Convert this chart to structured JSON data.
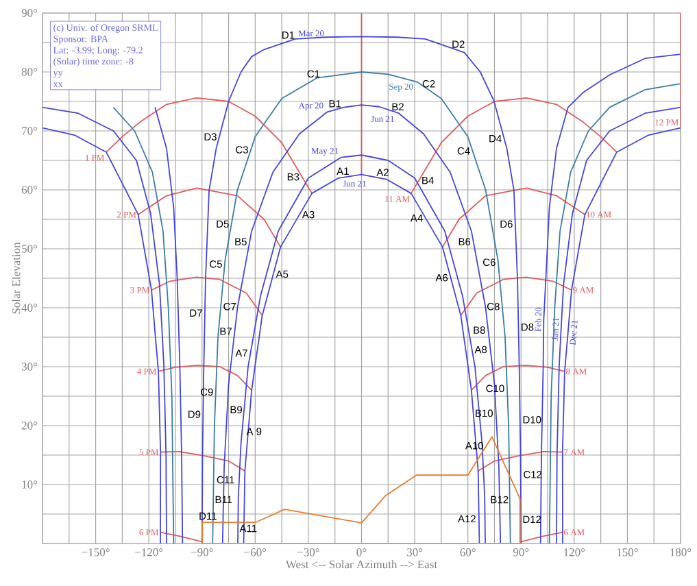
{
  "chart_data": {
    "type": "line",
    "xlabel": "West <-- Solar Azimuth --> East",
    "ylabel": "Solar Elevation",
    "xlim": [
      -180,
      180
    ],
    "ylim": [
      0,
      90
    ],
    "xticks": [
      {
        "value": -180,
        "label": null
      },
      {
        "value": -165,
        "label": null
      },
      {
        "value": -150,
        "label": "−150°"
      },
      {
        "value": -135,
        "label": null
      },
      {
        "value": -120,
        "label": "−120°"
      },
      {
        "value": -105,
        "label": null
      },
      {
        "value": -90,
        "label": "−90°"
      },
      {
        "value": -75,
        "label": null
      },
      {
        "value": -60,
        "label": "−60°"
      },
      {
        "value": -45,
        "label": null
      },
      {
        "value": -30,
        "label": "−30°"
      },
      {
        "value": -15,
        "label": null
      },
      {
        "value": 0,
        "label": "0°"
      },
      {
        "value": 15,
        "label": null
      },
      {
        "value": 30,
        "label": "30°"
      },
      {
        "value": 45,
        "label": null
      },
      {
        "value": 60,
        "label": "60°"
      },
      {
        "value": 75,
        "label": null
      },
      {
        "value": 90,
        "label": "90°"
      },
      {
        "value": 105,
        "label": null
      },
      {
        "value": 120,
        "label": "120°"
      },
      {
        "value": 135,
        "label": null
      },
      {
        "value": 150,
        "label": "150°"
      },
      {
        "value": 165,
        "label": null
      },
      {
        "value": 180,
        "label": "180°"
      }
    ],
    "yticks": [
      {
        "value": 0,
        "label": null
      },
      {
        "value": 5,
        "label": null
      },
      {
        "value": 10,
        "label": "10°"
      },
      {
        "value": 15,
        "label": null
      },
      {
        "value": 20,
        "label": "20°"
      },
      {
        "value": 25,
        "label": null
      },
      {
        "value": 30,
        "label": "30°"
      },
      {
        "value": 35,
        "label": null
      },
      {
        "value": 40,
        "label": "40°"
      },
      {
        "value": 45,
        "label": null
      },
      {
        "value": 50,
        "label": "50°"
      },
      {
        "value": 55,
        "label": null
      },
      {
        "value": 60,
        "label": "60°"
      },
      {
        "value": 65,
        "label": null
      },
      {
        "value": 70,
        "label": "70°"
      },
      {
        "value": 75,
        "label": null
      },
      {
        "value": 80,
        "label": "80°"
      },
      {
        "value": 85,
        "label": null
      },
      {
        "value": 90,
        "label": "90°"
      }
    ],
    "grid": true,
    "marker": "none",
    "series": [
      {
        "color": "#e05a5a",
        "x": [
          28,
          45,
          60,
          75,
          93,
          110,
          125,
          135,
          144
        ],
        "values": [
          59.4,
          68,
          72.5,
          75,
          75.6,
          74.5,
          71.5,
          69,
          66.4
        ]
      },
      {
        "color": "#e05a5a",
        "x": [
          126,
          110,
          93,
          70,
          55,
          45.7
        ],
        "values": [
          55.8,
          59,
          60.3,
          59,
          55,
          50.3
        ]
      },
      {
        "color": "#e05a5a",
        "x": [
          118.5,
          108,
          93,
          80,
          65,
          56
        ],
        "values": [
          43,
          44.5,
          45.2,
          44.8,
          42.5,
          38.7
        ]
      },
      {
        "color": "#e05a5a",
        "x": [
          114.6,
          105,
          93,
          80,
          70,
          62
        ],
        "values": [
          29.2,
          29.9,
          30.2,
          30,
          28.5,
          26
        ]
      },
      {
        "color": "#e05a5a",
        "x": [
          113.4,
          103,
          89,
          75,
          65.8
        ],
        "values": [
          15.5,
          15.6,
          14.9,
          14,
          12.3
        ]
      },
      {
        "color": "#e05a5a",
        "x": [
          113.4,
          102,
          90.2
        ],
        "values": [
          1.9,
          1.2,
          0.3
        ]
      },
      {
        "color": "#e05a5a",
        "x": [
          -144,
          -135,
          -125,
          -110,
          -93,
          -75,
          -60,
          -45,
          -28
        ],
        "values": [
          66.4,
          69,
          71.5,
          74.5,
          75.6,
          75,
          72.5,
          68,
          59.4
        ]
      },
      {
        "color": "#e05a5a",
        "x": [
          -126,
          -110,
          -93,
          -70,
          -55,
          -45.7
        ],
        "values": [
          55.8,
          59,
          60.3,
          59,
          55,
          50.3
        ]
      },
      {
        "color": "#e05a5a",
        "x": [
          -118.5,
          -108,
          -93,
          -80,
          -65,
          -56
        ],
        "values": [
          43,
          44.5,
          45.2,
          44.8,
          42.5,
          38.7
        ]
      },
      {
        "color": "#e05a5a",
        "x": [
          -114.6,
          -105,
          -93,
          -80,
          -70,
          -62
        ],
        "values": [
          29.2,
          29.9,
          30.2,
          30,
          28.5,
          26
        ]
      },
      {
        "color": "#e05a5a",
        "x": [
          -113.4,
          -103,
          -89,
          -75,
          -65.8
        ],
        "values": [
          15.5,
          15.6,
          14.9,
          14,
          12.3
        ]
      },
      {
        "color": "#e05a5a",
        "x": [
          -113.4,
          -102,
          -90.2
        ],
        "values": [
          1.9,
          1.2,
          0.3
        ]
      },
      {
        "color": "#e05a5a",
        "x": [
          180,
          180
        ],
        "values": [
          70.5,
          90
        ]
      },
      {
        "color": "#e05a5a",
        "x": [
          0,
          0
        ],
        "values": [
          62.6,
          90
        ]
      },
      {
        "color": "#4646d8",
        "x": [
          -90,
          -89.7,
          -89,
          -88,
          -86,
          -82,
          -75,
          -68,
          -62,
          -55,
          -37.5,
          -20,
          0,
          20,
          36,
          58,
          67,
          74.7,
          82,
          86,
          88,
          89,
          89.7,
          90
        ],
        "values": [
          0,
          15,
          29.9,
          44.8,
          59.9,
          67,
          75,
          80,
          82.6,
          83.8,
          85.6,
          85.9,
          86,
          85.9,
          85.6,
          83.3,
          80,
          75.1,
          67,
          59.9,
          44.8,
          29.9,
          15,
          0
        ]
      },
      {
        "color": "#3c7ca4",
        "x": [
          -84,
          -83,
          -81,
          -77,
          -70,
          -60,
          -45,
          -25,
          0,
          15,
          31.4,
          45,
          60,
          70,
          77,
          81,
          83,
          84
        ],
        "values": [
          0,
          20,
          35,
          48,
          60,
          69,
          75.5,
          79,
          80,
          79.6,
          78.3,
          75.5,
          69,
          60,
          48,
          35,
          20,
          0
        ]
      },
      {
        "color": "#4646d8",
        "x": [
          -78.4,
          -77.5,
          -75,
          -70,
          -62,
          -50,
          -35,
          -19.4,
          -10,
          0,
          10,
          21,
          35,
          50,
          62,
          70,
          75,
          77.5,
          78.4
        ],
        "values": [
          0,
          13,
          27,
          40,
          53,
          63,
          69.5,
          73.2,
          74,
          74.4,
          74.1,
          73,
          69.5,
          63,
          53,
          40,
          27,
          13,
          0
        ]
      },
      {
        "color": "#4646d8",
        "x": [
          -69.8,
          -69.5,
          -68,
          -64,
          -57,
          -47,
          -30,
          -11.6,
          0,
          15,
          30,
          47,
          57,
          64,
          68,
          69.5,
          69.8
        ],
        "values": [
          0,
          8,
          17,
          30,
          42,
          53,
          62,
          65.5,
          65.9,
          65,
          62,
          53,
          42,
          30,
          17,
          8,
          0
        ]
      },
      {
        "color": "#4646d8",
        "x": [
          -66.5,
          -65.8,
          -62,
          -56,
          -45.7,
          -28,
          -13,
          0,
          14,
          28,
          45.7,
          56,
          62,
          65.8,
          66.5
        ],
        "values": [
          0,
          12.3,
          26,
          38.7,
          50.3,
          59.4,
          62,
          62.6,
          61.8,
          59.4,
          50.3,
          38.7,
          26,
          12.3,
          0
        ]
      },
      {
        "color": "#4646d8",
        "x": [
          101,
          101.5,
          102.5,
          102.8,
          104,
          106,
          110,
          116.5,
          125,
          140,
          160,
          180
        ],
        "values": [
          0,
          15,
          30,
          38,
          45,
          57,
          67,
          74,
          76.5,
          79.5,
          82.3,
          83
        ]
      },
      {
        "color": "#4646d8",
        "x": [
          -116.5,
          -110,
          -106,
          -104,
          -102.5,
          -101.5,
          -101
        ],
        "values": [
          74,
          67,
          57,
          45,
          30,
          15,
          0
        ]
      },
      {
        "color": "#3c7ca4",
        "x": [
          106,
          107,
          109,
          112,
          118,
          128,
          140,
          160,
          180
        ],
        "values": [
          0,
          25,
          40,
          53,
          63,
          70,
          74,
          77,
          78
        ]
      },
      {
        "color": "#3c7ca4",
        "x": [
          -106,
          -107,
          -109,
          -112,
          -118,
          -128,
          -140
        ],
        "values": [
          0,
          25,
          40,
          53,
          63,
          70,
          74
        ]
      },
      {
        "color": "#4646d8",
        "x": [
          110,
          110.3,
          111.5,
          112.6,
          114,
          119,
          127,
          140,
          160,
          180
        ],
        "values": [
          0,
          15,
          30,
          36.4,
          44,
          56,
          65,
          70,
          73,
          74
        ]
      },
      {
        "color": "#4646d8",
        "x": [
          -110,
          -110.3,
          -111.5,
          -112.6,
          -114,
          -119,
          -127,
          -140,
          -160,
          -180
        ],
        "values": [
          0,
          15,
          30,
          36.4,
          44,
          56,
          65,
          70,
          73,
          74
        ]
      },
      {
        "color": "#4646d8",
        "x": [
          113.5,
          113.4,
          114.6,
          116.5,
          118.5,
          126,
          144,
          162,
          180
        ],
        "values": [
          0,
          15.5,
          29.2,
          35.8,
          43,
          55.8,
          66.4,
          69.3,
          70.5
        ]
      },
      {
        "color": "#4646d8",
        "x": [
          -113.5,
          -113.4,
          -114.6,
          -116.5,
          -118.5,
          -126,
          -144,
          -162,
          -180
        ],
        "values": [
          0,
          15.5,
          29.2,
          35.8,
          43,
          55.8,
          66.4,
          69.3,
          70.5
        ]
      },
      {
        "color": "#e87d2a",
        "x": [
          -89.8,
          -89.8,
          -59.6,
          -43.4,
          0,
          13.5,
          31,
          60,
          73.6,
          89.4,
          89.4
        ],
        "values": [
          0,
          3.6,
          3.6,
          5.8,
          3.5,
          8.1,
          11.6,
          11.6,
          18.1,
          7.6,
          0
        ]
      },
      {
        "color": "#e87d2a",
        "x": [
          -89.8,
          89.4
        ],
        "values": [
          0,
          0
        ]
      }
    ],
    "annotations": [
      "(c) Univ. of Oregon SRML",
      "Sponsor: BPA",
      "Lat: -3.99; Long: -79.2",
      "(Solar) time zone: -8",
      "yy",
      "xx",
      {
        "text": "D1",
        "x": -41.4,
        "y": 85.2
      },
      {
        "text": "D2",
        "x": 54.6,
        "y": 83.66
      },
      {
        "text": "C1",
        "x": -27.1,
        "y": 78.63
      },
      {
        "text": "C2",
        "x": 32.9,
        "y": 77.99
      },
      {
        "text": "B1",
        "x": -15,
        "y": 73.57
      },
      {
        "text": "B2",
        "x": 20.5,
        "y": 73.05
      },
      {
        "text": "A1",
        "x": -10.5,
        "y": 62.12
      },
      {
        "text": "A2",
        "x": 12,
        "y": 61.91
      },
      {
        "text": "D3",
        "x": -80.25,
        "y": 69
      },
      {
        "text": "D4",
        "x": 80.47,
        "y": 68.7
      },
      {
        "text": "C3",
        "x": -62.44,
        "y": 66.8
      },
      {
        "text": "C4",
        "x": 62.67,
        "y": 66.6
      },
      {
        "text": "B3",
        "x": -33.53,
        "y": 62.2
      },
      {
        "text": "B4",
        "x": 32.35,
        "y": 61.6
      },
      {
        "text": "A3",
        "x": -35,
        "y": 55.8
      },
      {
        "text": "A4",
        "x": 36.17,
        "y": 55.2
      },
      {
        "text": "D5",
        "x": -73.38,
        "y": 54.2
      },
      {
        "text": "D6",
        "x": 86.75,
        "y": 54.2
      },
      {
        "text": "B5",
        "x": -63.11,
        "y": 51.2
      },
      {
        "text": "B6",
        "x": 63.11,
        "y": 51.2
      },
      {
        "text": "C5",
        "x": -77.18,
        "y": 47.4
      },
      {
        "text": "C6",
        "x": 77.09,
        "y": 47.7
      },
      {
        "text": "A5",
        "x": -49.78,
        "y": 45.7
      },
      {
        "text": "A6",
        "x": 50.32,
        "y": 45.1
      },
      {
        "text": "D7",
        "x": -88.38,
        "y": 39.1
      },
      {
        "text": "C7",
        "x": -79.4,
        "y": 40.2
      },
      {
        "text": "C8",
        "x": 79.4,
        "y": 40.2
      },
      {
        "text": "B7",
        "x": -71.54,
        "y": 36
      },
      {
        "text": "B8",
        "x": 71.46,
        "y": 36.2
      },
      {
        "text": "D8",
        "x": 88.54,
        "y": 36.7
      },
      {
        "text": "A7",
        "x": -62.66,
        "y": 32.3
      },
      {
        "text": "A8",
        "x": 62.31,
        "y": 32.9
      },
      {
        "text": "C9",
        "x": -82.24,
        "y": 25.7
      },
      {
        "text": "C10",
        "x": 82.16,
        "y": 26.3
      },
      {
        "text": "D9",
        "x": -89.38,
        "y": 21.9
      },
      {
        "text": "B9",
        "x": -75.77,
        "y": 22.7
      },
      {
        "text": "B10",
        "x": 75.88,
        "y": 22.1
      },
      {
        "text": "D10",
        "x": 89.42,
        "y": 21
      },
      {
        "text": "A 9",
        "x": -67.38,
        "y": 19
      },
      {
        "text": "A10",
        "x": 70.46,
        "y": 16.6
      },
      {
        "text": "C11",
        "x": -83.46,
        "y": 10.8
      },
      {
        "text": "C12",
        "x": 89.77,
        "y": 11.7
      },
      {
        "text": "B11",
        "x": -77.81,
        "y": 8.5
      },
      {
        "text": "B12",
        "x": 77.81,
        "y": 8.5
      },
      {
        "text": "D11",
        "x": -86.7,
        "y": 3.6
      },
      {
        "text": "A11",
        "x": -63.9,
        "y": 3.6
      },
      {
        "text": "A12",
        "x": 66.26,
        "y": 4.2
      },
      {
        "text": "D12",
        "x": 89.4,
        "y": 4.1
      },
      {
        "text": "Mar 20",
        "x": -37.5,
        "y": 85.6
      },
      {
        "text": "Sep 20",
        "x": 31.4,
        "y": 78.3
      },
      {
        "text": "Apr 20",
        "x": -19.4,
        "y": 73.2
      },
      {
        "text": "Jun 21",
        "x": 21,
        "y": 73
      },
      {
        "text": "May 21",
        "x": -11.6,
        "y": 65.5
      },
      {
        "text": "Jun 21",
        "x": -13,
        "y": 62
      },
      {
        "text": "Feb 20",
        "x": 102.8,
        "y": 38
      },
      {
        "text": "Jan 21",
        "x": 112.6,
        "y": 36.4
      },
      {
        "text": "Dec 21",
        "x": 116.5,
        "y": 35.8
      },
      {
        "text": "11 AM",
        "x": 28,
        "y": 59.4
      },
      {
        "text": "10 AM",
        "x": 126,
        "y": 55.8
      },
      {
        "text": "9 AM",
        "x": 118.5,
        "y": 43
      },
      {
        "text": "8 AM",
        "x": 114.6,
        "y": 29.2
      },
      {
        "text": "7 AM",
        "x": 113.4,
        "y": 15.5
      },
      {
        "text": "6 AM",
        "x": 113.4,
        "y": 1.9
      },
      {
        "text": "1 PM",
        "x": -144,
        "y": 66.4
      },
      {
        "text": "2 PM",
        "x": -126,
        "y": 55.8
      },
      {
        "text": "3 PM",
        "x": -118.5,
        "y": 43
      },
      {
        "text": "4 PM",
        "x": -114.6,
        "y": 29.2
      },
      {
        "text": "5 PM",
        "x": -113.4,
        "y": 15.5
      },
      {
        "text": "6 PM",
        "x": -113.4,
        "y": 1.9
      },
      {
        "text": "12 PM",
        "x": 180,
        "y": 70.5
      }
    ]
  }
}
